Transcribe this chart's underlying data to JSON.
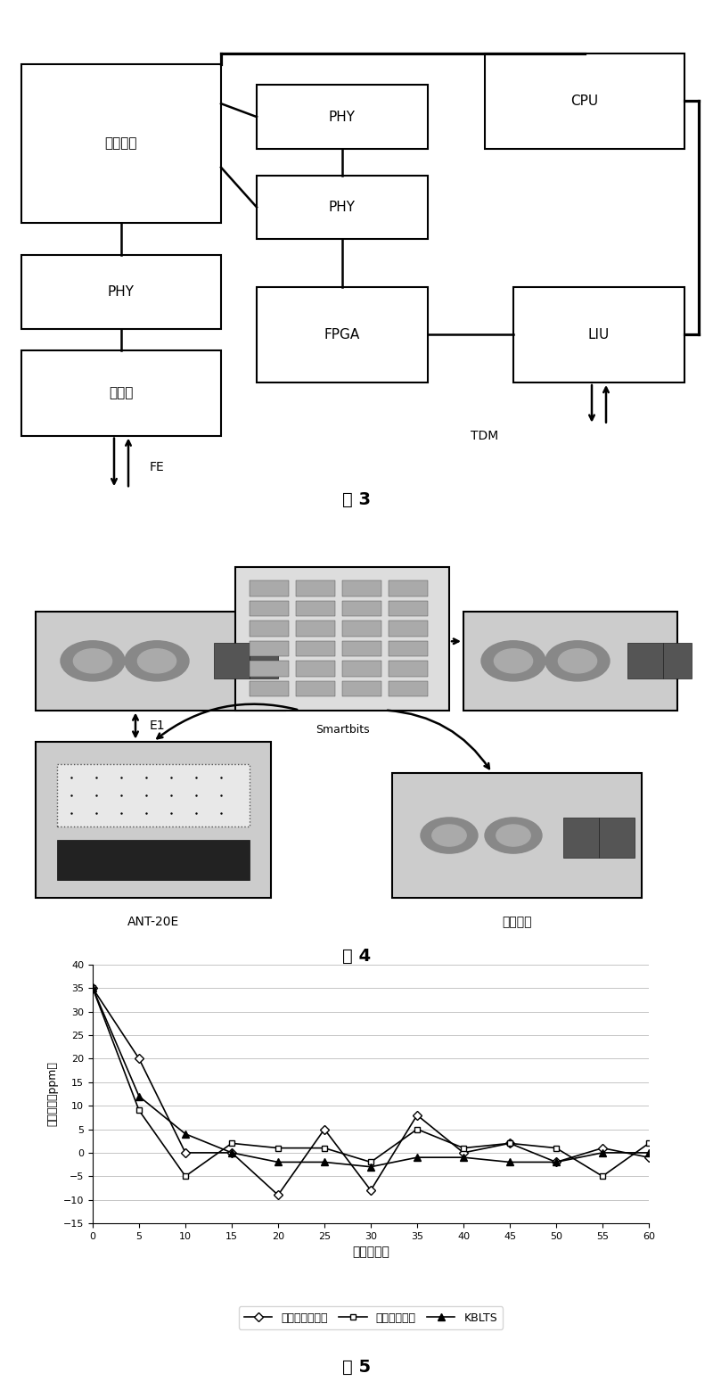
{
  "fig3_caption": "图 3",
  "fig4_caption": "图 4",
  "fig5_caption": "图 5",
  "box_switch": "交换芯片",
  "box_phy_left": "PHY",
  "box_optical": "光模块",
  "box_phy_mid1": "PHY",
  "box_phy_mid2": "PHY",
  "box_fpga": "FPGA",
  "box_cpu": "CPU",
  "box_liu": "LIU",
  "label_fe": "FE",
  "label_tdm": "TDM",
  "label_ant": "ANT-20E",
  "label_smartbits": "Smartbits",
  "label_simdev": "仿真设备",
  "label_e1": "E1",
  "graph_xlabel": "时间（秒）",
  "graph_ylabel": "频率差异（ppm）",
  "graph_ylim": [
    -15,
    40
  ],
  "graph_xlim": [
    0,
    60
  ],
  "graph_yticks": [
    -15,
    -10,
    -5,
    0,
    5,
    10,
    15,
    20,
    25,
    30,
    35,
    40
  ],
  "graph_xticks": [
    0,
    5,
    10,
    15,
    20,
    25,
    30,
    35,
    40,
    45,
    50,
    55,
    60
  ],
  "series1_name": "普通缓冲区方法",
  "series2_name": "普通时戟方法",
  "series3_name": "KBLTS",
  "series1_x": [
    0,
    5,
    10,
    15,
    20,
    25,
    30,
    35,
    40,
    45,
    50,
    55,
    60
  ],
  "series1_y": [
    35,
    20,
    0,
    0,
    -9,
    5,
    -8,
    8,
    0,
    2,
    -2,
    1,
    -1
  ],
  "series2_x": [
    0,
    5,
    10,
    15,
    20,
    25,
    30,
    35,
    40,
    45,
    50,
    55,
    60
  ],
  "series2_y": [
    35,
    9,
    -5,
    2,
    1,
    1,
    -2,
    5,
    1,
    2,
    1,
    -5,
    2
  ],
  "series3_x": [
    0,
    5,
    10,
    15,
    20,
    25,
    30,
    35,
    40,
    45,
    50,
    55,
    60
  ],
  "series3_y": [
    35,
    12,
    4,
    0,
    -2,
    -2,
    -3,
    -1,
    -1,
    -2,
    -2,
    0,
    0
  ],
  "bg_color": "#ffffff",
  "grid_color": "#aaaaaa"
}
